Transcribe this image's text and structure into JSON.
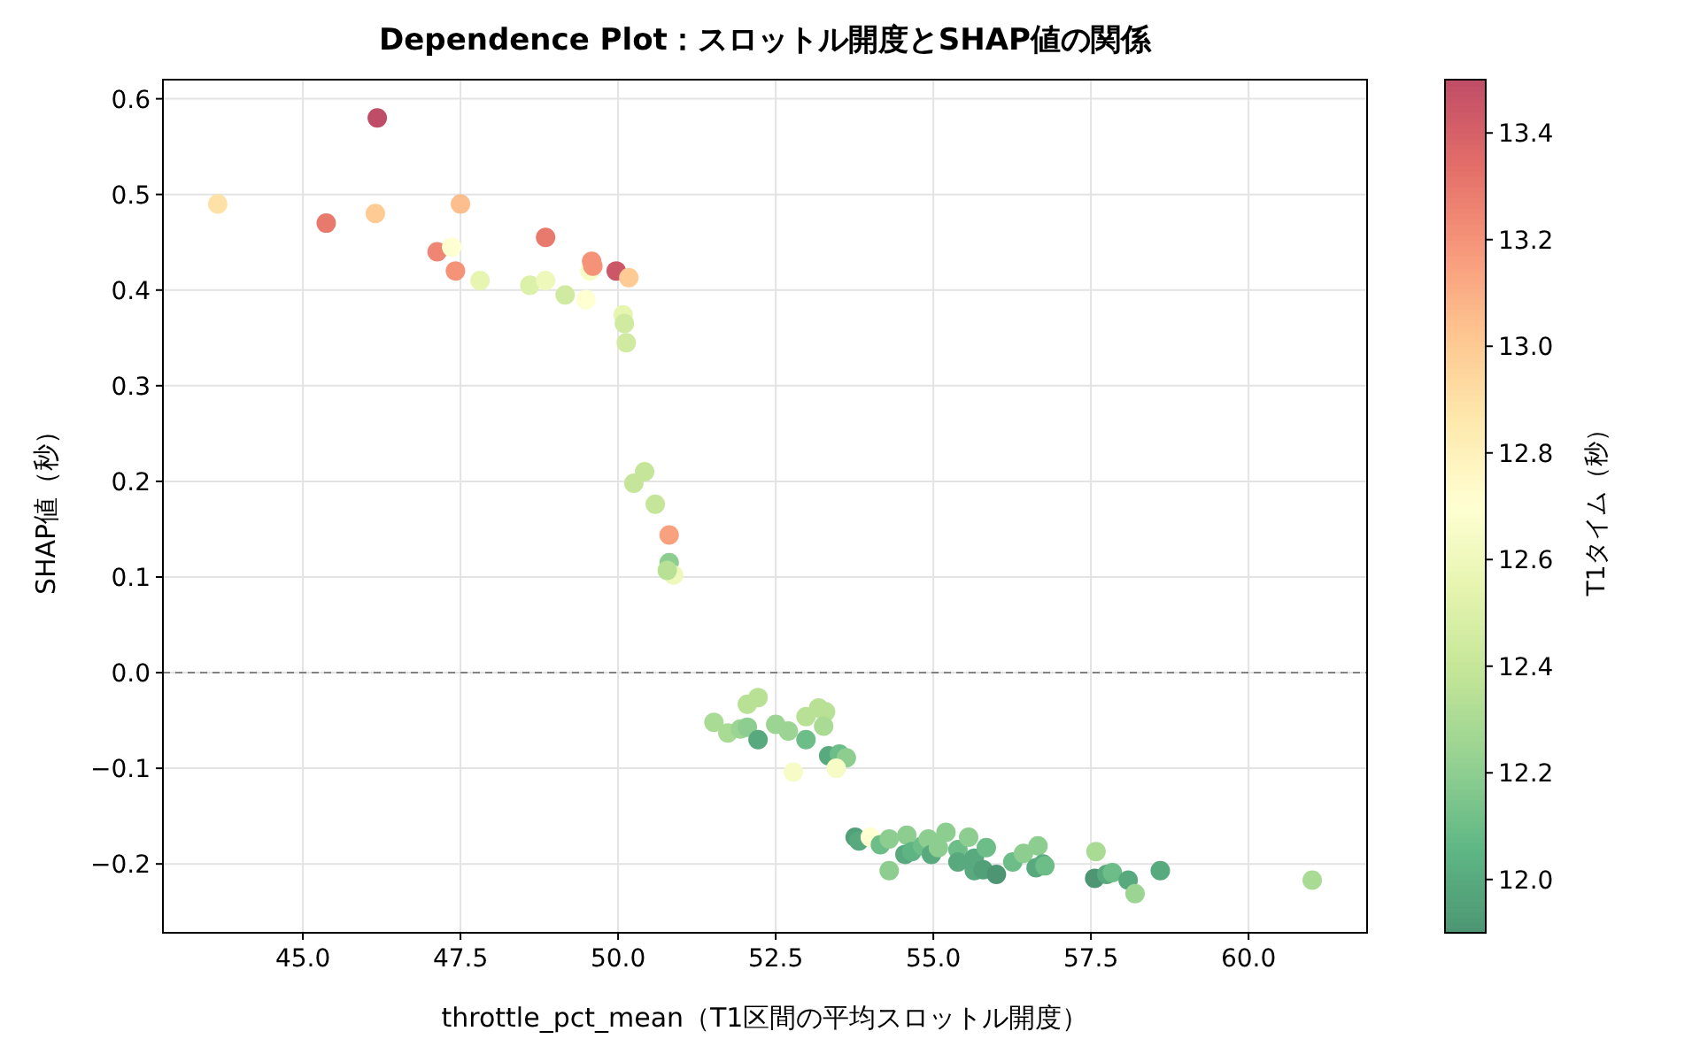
{
  "chart_data": {
    "type": "scatter",
    "title": "Dependence Plot：スロットル開度とSHAP値の関係",
    "xlabel": "throttle_pct_mean（T1区間の平均スロットル開度）",
    "ylabel": "SHAP値（秒）",
    "clabel": "T1タイム（秒）",
    "x": [
      43.65,
      45.37,
      46.18,
      46.15,
      47.5,
      47.13,
      47.36,
      47.42,
      47.81,
      48.6,
      48.85,
      48.85,
      49.16,
      49.49,
      49.55,
      49.58,
      49.6,
      49.97,
      50.17,
      50.08,
      50.1,
      50.13,
      50.42,
      50.25,
      50.59,
      50.81,
      50.81,
      50.88,
      50.78,
      51.52,
      51.74,
      51.94,
      52.05,
      52.22,
      52.05,
      52.22,
      52.5,
      52.7,
      52.78,
      52.98,
      52.98,
      53.18,
      53.29,
      53.26,
      53.34,
      53.51,
      53.62,
      53.46,
      53.76,
      53.82,
      54.0,
      54.16,
      54.3,
      54.3,
      54.58,
      54.55,
      54.66,
      54.83,
      54.92,
      54.97,
      55.08,
      55.2,
      55.39,
      55.39,
      55.56,
      55.65,
      55.65,
      55.79,
      55.84,
      56.0,
      56.26,
      56.43,
      56.66,
      56.63,
      56.74,
      56.77,
      57.56,
      57.58,
      57.75,
      57.84,
      58.09,
      58.2,
      58.6,
      61.01
    ],
    "values": [
      0.49,
      0.47,
      0.58,
      0.48,
      0.49,
      0.44,
      0.445,
      0.42,
      0.41,
      0.405,
      0.41,
      0.455,
      0.395,
      0.39,
      0.42,
      0.43,
      0.425,
      0.42,
      0.413,
      0.374,
      0.365,
      0.345,
      0.21,
      0.198,
      0.176,
      0.144,
      0.115,
      0.102,
      0.107,
      -0.052,
      -0.063,
      -0.059,
      -0.057,
      -0.07,
      -0.033,
      -0.026,
      -0.054,
      -0.061,
      -0.104,
      -0.07,
      -0.046,
      -0.037,
      -0.041,
      -0.056,
      -0.087,
      -0.085,
      -0.089,
      -0.1,
      -0.172,
      -0.176,
      -0.172,
      -0.18,
      -0.174,
      -0.207,
      -0.17,
      -0.19,
      -0.187,
      -0.181,
      -0.174,
      -0.19,
      -0.183,
      -0.167,
      -0.185,
      -0.198,
      -0.172,
      -0.194,
      -0.207,
      -0.206,
      -0.183,
      -0.211,
      -0.198,
      -0.189,
      -0.181,
      -0.204,
      -0.2,
      -0.202,
      -0.215,
      -0.187,
      -0.211,
      -0.209,
      -0.217,
      -0.231,
      -0.207,
      -0.217
    ],
    "cvalues": [
      12.9,
      13.3,
      13.5,
      13.0,
      13.05,
      13.25,
      12.7,
      13.2,
      12.55,
      12.5,
      12.6,
      13.3,
      12.45,
      12.7,
      12.65,
      13.2,
      13.2,
      13.45,
      13.0,
      12.55,
      12.45,
      12.45,
      12.4,
      12.4,
      12.4,
      13.15,
      12.2,
      12.6,
      12.35,
      12.3,
      12.3,
      12.25,
      12.2,
      12.0,
      12.35,
      12.35,
      12.25,
      12.25,
      12.65,
      12.1,
      12.35,
      12.35,
      12.35,
      12.3,
      12.0,
      12.1,
      12.2,
      12.65,
      11.95,
      12.0,
      12.7,
      12.1,
      12.2,
      12.2,
      12.2,
      12.0,
      12.05,
      12.1,
      12.2,
      12.0,
      12.2,
      12.2,
      12.1,
      12.0,
      12.2,
      12.0,
      12.0,
      11.95,
      12.1,
      11.9,
      12.1,
      12.2,
      12.2,
      12.0,
      12.0,
      12.1,
      11.9,
      12.3,
      12.0,
      12.1,
      12.0,
      12.25,
      12.0,
      12.3
    ],
    "clim": [
      11.9,
      13.5
    ],
    "cticks": [
      {
        "value": 12.0,
        "label": "12.0"
      },
      {
        "value": 12.2,
        "label": "12.2"
      },
      {
        "value": 12.4,
        "label": "12.4"
      },
      {
        "value": 12.6,
        "label": "12.6"
      },
      {
        "value": 12.8,
        "label": "12.8"
      },
      {
        "value": 13.0,
        "label": "13.0"
      },
      {
        "value": 13.2,
        "label": "13.2"
      },
      {
        "value": 13.4,
        "label": "13.4"
      }
    ],
    "xlim": [
      42.78,
      61.88
    ],
    "ylim": [
      -0.272,
      0.62
    ],
    "xticks": [
      {
        "value": 45,
        "label": "45.0"
      },
      {
        "value": 47.5,
        "label": "47.5"
      },
      {
        "value": 50,
        "label": "50.0"
      },
      {
        "value": 52.5,
        "label": "52.5"
      },
      {
        "value": 55,
        "label": "55.0"
      },
      {
        "value": 57.5,
        "label": "57.5"
      },
      {
        "value": 60,
        "label": "60.0"
      }
    ],
    "yticks": [
      {
        "value": -0.2,
        "label": "−0.2"
      },
      {
        "value": -0.1,
        "label": "−0.1"
      },
      {
        "value": 0,
        "label": "0.0"
      },
      {
        "value": 0.1,
        "label": "0.1"
      },
      {
        "value": 0.2,
        "label": "0.2"
      },
      {
        "value": 0.3,
        "label": "0.3"
      },
      {
        "value": 0.4,
        "label": "0.4"
      },
      {
        "value": 0.5,
        "label": "0.5"
      },
      {
        "value": 0.6,
        "label": "0.6"
      }
    ],
    "grid": true,
    "marker": "circle",
    "ref_lines": [
      {
        "axis": "y",
        "value": 0,
        "color": "#808080",
        "line_style": "dashed"
      }
    ]
  }
}
